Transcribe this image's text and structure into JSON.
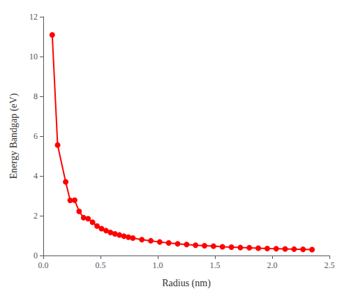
{
  "chart_data": {
    "type": "line",
    "xlabel": "Radius (nm)",
    "ylabel": "Energy Bandgap (eV)",
    "x": [
      0.0783,
      0.1252,
      0.1956,
      0.2348,
      0.2739,
      0.313,
      0.3522,
      0.3913,
      0.4305,
      0.4696,
      0.5087,
      0.5479,
      0.587,
      0.6261,
      0.6652,
      0.7044,
      0.7435,
      0.7826,
      0.8609,
      0.9391,
      1.0174,
      1.0957,
      1.1739,
      1.2522,
      1.3304,
      1.4087,
      1.487,
      1.5652,
      1.6435,
      1.7217,
      1.8,
      1.8783,
      1.9565,
      2.0348,
      2.113,
      2.1913,
      2.2696,
      2.3478
    ],
    "values": [
      11.09,
      5.55,
      3.7,
      2.77,
      2.78,
      2.22,
      1.9,
      1.85,
      1.67,
      1.48,
      1.35,
      1.25,
      1.16,
      1.09,
      1.03,
      0.97,
      0.92,
      0.88,
      0.8,
      0.74,
      0.68,
      0.63,
      0.59,
      0.55,
      0.52,
      0.49,
      0.47,
      0.44,
      0.42,
      0.4,
      0.39,
      0.37,
      0.35,
      0.34,
      0.33,
      0.32,
      0.31,
      0.3
    ],
    "color": "#FF0000",
    "marker": "circle",
    "xlim": [
      0,
      2.5
    ],
    "ylim": [
      0,
      12
    ],
    "xticks": [
      {
        "value": 0,
        "label": "0.0"
      },
      0.5,
      {
        "value": 1.0,
        "label": "1.0"
      },
      1.5,
      {
        "value": 2.0,
        "label": "2.0"
      },
      2.5
    ],
    "yticks": [
      0,
      2,
      4,
      6,
      8,
      10,
      12
    ],
    "grid": false
  }
}
